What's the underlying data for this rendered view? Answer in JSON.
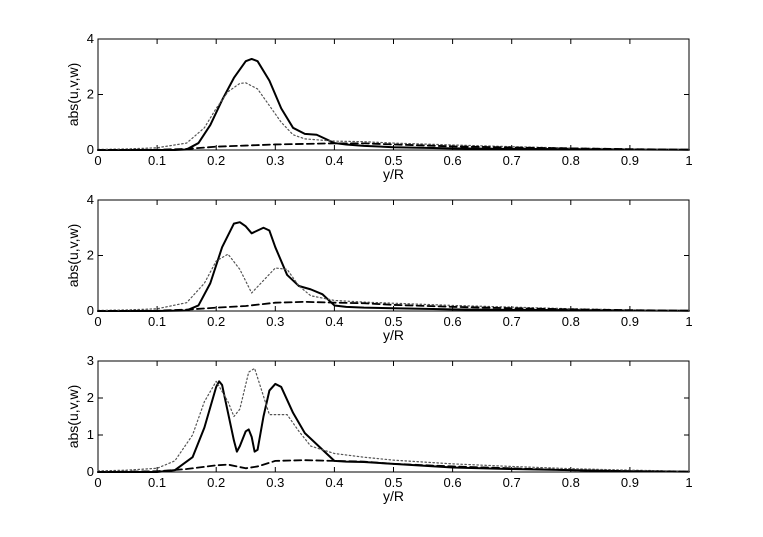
{
  "chart_data": [
    {
      "type": "line",
      "xlabel": "y/R",
      "ylabel": "abs(u,v,w)",
      "xlim": [
        0,
        1
      ],
      "ylim": [
        0,
        4
      ],
      "xticks": [
        0,
        0.1,
        0.2,
        0.3,
        0.4,
        0.5,
        0.6,
        0.7,
        0.8,
        0.9,
        1
      ],
      "xtick_labels": [
        "0",
        "0.1",
        "0.2",
        "0.3",
        "0.4",
        "0.5",
        "0.6",
        "0.7",
        "0.8",
        "0.9",
        "1"
      ],
      "yticks": [
        0,
        2,
        4
      ],
      "ytick_labels": [
        "0",
        "2",
        "4"
      ],
      "grid": false,
      "series": [
        {
          "style": "solid",
          "color": "#000000",
          "points": [
            [
              0,
              0
            ],
            [
              0.05,
              0
            ],
            [
              0.1,
              0
            ],
            [
              0.13,
              0
            ],
            [
              0.15,
              0.02
            ],
            [
              0.17,
              0.25
            ],
            [
              0.19,
              0.9
            ],
            [
              0.21,
              1.8
            ],
            [
              0.23,
              2.6
            ],
            [
              0.25,
              3.2
            ],
            [
              0.26,
              3.28
            ],
            [
              0.27,
              3.2
            ],
            [
              0.29,
              2.5
            ],
            [
              0.31,
              1.5
            ],
            [
              0.33,
              0.8
            ],
            [
              0.35,
              0.58
            ],
            [
              0.37,
              0.55
            ],
            [
              0.38,
              0.45
            ],
            [
              0.4,
              0.25
            ],
            [
              0.42,
              0.2
            ],
            [
              0.45,
              0.15
            ],
            [
              0.5,
              0.1
            ],
            [
              0.6,
              0.06
            ],
            [
              0.7,
              0.04
            ],
            [
              0.8,
              0.03
            ],
            [
              0.9,
              0.02
            ],
            [
              1,
              0.01
            ]
          ]
        },
        {
          "style": "dotted",
          "color": "#555555",
          "points": [
            [
              0,
              0.02
            ],
            [
              0.05,
              0.04
            ],
            [
              0.1,
              0.08
            ],
            [
              0.15,
              0.25
            ],
            [
              0.18,
              0.8
            ],
            [
              0.2,
              1.5
            ],
            [
              0.22,
              2.1
            ],
            [
              0.24,
              2.4
            ],
            [
              0.25,
              2.42
            ],
            [
              0.27,
              2.2
            ],
            [
              0.29,
              1.6
            ],
            [
              0.31,
              1.0
            ],
            [
              0.33,
              0.55
            ],
            [
              0.35,
              0.4
            ],
            [
              0.4,
              0.32
            ],
            [
              0.45,
              0.3
            ],
            [
              0.5,
              0.25
            ],
            [
              0.6,
              0.18
            ],
            [
              0.7,
              0.12
            ],
            [
              0.8,
              0.07
            ],
            [
              0.9,
              0.04
            ],
            [
              1,
              0.02
            ]
          ]
        },
        {
          "style": "dashed",
          "color": "#000000",
          "points": [
            [
              0,
              0
            ],
            [
              0.1,
              0.01
            ],
            [
              0.15,
              0.04
            ],
            [
              0.2,
              0.12
            ],
            [
              0.25,
              0.16
            ],
            [
              0.3,
              0.2
            ],
            [
              0.35,
              0.22
            ],
            [
              0.4,
              0.24
            ],
            [
              0.45,
              0.24
            ],
            [
              0.5,
              0.2
            ],
            [
              0.6,
              0.13
            ],
            [
              0.7,
              0.09
            ],
            [
              0.8,
              0.06
            ],
            [
              0.9,
              0.03
            ],
            [
              1,
              0.01
            ]
          ]
        }
      ]
    },
    {
      "type": "line",
      "xlabel": "y/R",
      "ylabel": "abs(u,v,w)",
      "xlim": [
        0,
        1
      ],
      "ylim": [
        0,
        4
      ],
      "xticks": [
        0,
        0.1,
        0.2,
        0.3,
        0.4,
        0.5,
        0.6,
        0.7,
        0.8,
        0.9,
        1
      ],
      "xtick_labels": [
        "0",
        "0.1",
        "0.2",
        "0.3",
        "0.4",
        "0.5",
        "0.6",
        "0.7",
        "0.8",
        "0.9",
        "1"
      ],
      "yticks": [
        0,
        2,
        4
      ],
      "ytick_labels": [
        "0",
        "2",
        "4"
      ],
      "grid": false,
      "series": [
        {
          "style": "solid",
          "color": "#000000",
          "points": [
            [
              0,
              0
            ],
            [
              0.05,
              0
            ],
            [
              0.1,
              0
            ],
            [
              0.15,
              0.02
            ],
            [
              0.17,
              0.2
            ],
            [
              0.19,
              1.0
            ],
            [
              0.21,
              2.3
            ],
            [
              0.23,
              3.15
            ],
            [
              0.24,
              3.2
            ],
            [
              0.25,
              3.05
            ],
            [
              0.26,
              2.8
            ],
            [
              0.27,
              2.9
            ],
            [
              0.28,
              3.0
            ],
            [
              0.29,
              2.9
            ],
            [
              0.3,
              2.3
            ],
            [
              0.32,
              1.3
            ],
            [
              0.34,
              0.9
            ],
            [
              0.36,
              0.78
            ],
            [
              0.38,
              0.6
            ],
            [
              0.4,
              0.2
            ],
            [
              0.42,
              0.15
            ],
            [
              0.45,
              0.12
            ],
            [
              0.5,
              0.1
            ],
            [
              0.6,
              0.06
            ],
            [
              0.7,
              0.04
            ],
            [
              0.8,
              0.03
            ],
            [
              0.9,
              0.02
            ],
            [
              1,
              0.01
            ]
          ]
        },
        {
          "style": "dotted",
          "color": "#555555",
          "points": [
            [
              0,
              0.02
            ],
            [
              0.05,
              0.04
            ],
            [
              0.1,
              0.08
            ],
            [
              0.15,
              0.3
            ],
            [
              0.18,
              1.0
            ],
            [
              0.2,
              1.8
            ],
            [
              0.22,
              2.05
            ],
            [
              0.24,
              1.5
            ],
            [
              0.26,
              0.65
            ],
            [
              0.28,
              1.1
            ],
            [
              0.3,
              1.55
            ],
            [
              0.32,
              1.5
            ],
            [
              0.34,
              0.9
            ],
            [
              0.36,
              0.55
            ],
            [
              0.4,
              0.38
            ],
            [
              0.45,
              0.32
            ],
            [
              0.5,
              0.28
            ],
            [
              0.6,
              0.2
            ],
            [
              0.7,
              0.14
            ],
            [
              0.8,
              0.08
            ],
            [
              0.9,
              0.04
            ],
            [
              1,
              0.02
            ]
          ]
        },
        {
          "style": "dashed",
          "color": "#000000",
          "points": [
            [
              0,
              0
            ],
            [
              0.1,
              0.01
            ],
            [
              0.15,
              0.05
            ],
            [
              0.2,
              0.12
            ],
            [
              0.25,
              0.18
            ],
            [
              0.3,
              0.3
            ],
            [
              0.35,
              0.33
            ],
            [
              0.4,
              0.3
            ],
            [
              0.45,
              0.28
            ],
            [
              0.5,
              0.22
            ],
            [
              0.6,
              0.15
            ],
            [
              0.7,
              0.1
            ],
            [
              0.8,
              0.06
            ],
            [
              0.9,
              0.03
            ],
            [
              1,
              0.01
            ]
          ]
        }
      ]
    },
    {
      "type": "line",
      "xlabel": "y/R",
      "ylabel": "abs(u,v,w)",
      "xlim": [
        0,
        1
      ],
      "ylim": [
        0,
        3
      ],
      "xticks": [
        0,
        0.1,
        0.2,
        0.3,
        0.4,
        0.5,
        0.6,
        0.7,
        0.8,
        0.9,
        1
      ],
      "xtick_labels": [
        "0",
        "0.1",
        "0.2",
        "0.3",
        "0.4",
        "0.5",
        "0.6",
        "0.7",
        "0.8",
        "0.9",
        "1"
      ],
      "yticks": [
        0,
        1,
        2,
        3
      ],
      "ytick_labels": [
        "0",
        "1",
        "2",
        "3"
      ],
      "grid": false,
      "series": [
        {
          "style": "solid",
          "color": "#000000",
          "points": [
            [
              0,
              0
            ],
            [
              0.05,
              0
            ],
            [
              0.1,
              0
            ],
            [
              0.13,
              0.05
            ],
            [
              0.16,
              0.4
            ],
            [
              0.18,
              1.2
            ],
            [
              0.2,
              2.3
            ],
            [
              0.205,
              2.45
            ],
            [
              0.21,
              2.35
            ],
            [
              0.22,
              1.6
            ],
            [
              0.23,
              0.85
            ],
            [
              0.235,
              0.55
            ],
            [
              0.24,
              0.7
            ],
            [
              0.25,
              1.1
            ],
            [
              0.255,
              1.15
            ],
            [
              0.26,
              0.95
            ],
            [
              0.265,
              0.55
            ],
            [
              0.27,
              0.6
            ],
            [
              0.28,
              1.5
            ],
            [
              0.29,
              2.2
            ],
            [
              0.3,
              2.38
            ],
            [
              0.31,
              2.3
            ],
            [
              0.33,
              1.6
            ],
            [
              0.35,
              1.05
            ],
            [
              0.37,
              0.75
            ],
            [
              0.39,
              0.45
            ],
            [
              0.4,
              0.3
            ],
            [
              0.42,
              0.28
            ],
            [
              0.45,
              0.27
            ],
            [
              0.5,
              0.22
            ],
            [
              0.6,
              0.12
            ],
            [
              0.7,
              0.08
            ],
            [
              0.8,
              0.05
            ],
            [
              0.9,
              0.02
            ],
            [
              1,
              0.01
            ]
          ]
        },
        {
          "style": "dotted",
          "color": "#555555",
          "points": [
            [
              0,
              0.03
            ],
            [
              0.05,
              0.05
            ],
            [
              0.1,
              0.1
            ],
            [
              0.13,
              0.3
            ],
            [
              0.16,
              1.0
            ],
            [
              0.18,
              1.9
            ],
            [
              0.2,
              2.45
            ],
            [
              0.22,
              1.9
            ],
            [
              0.23,
              1.5
            ],
            [
              0.24,
              1.7
            ],
            [
              0.255,
              2.7
            ],
            [
              0.265,
              2.8
            ],
            [
              0.275,
              2.3
            ],
            [
              0.29,
              1.55
            ],
            [
              0.3,
              1.55
            ],
            [
              0.32,
              1.55
            ],
            [
              0.34,
              1.1
            ],
            [
              0.36,
              0.7
            ],
            [
              0.4,
              0.5
            ],
            [
              0.45,
              0.4
            ],
            [
              0.5,
              0.32
            ],
            [
              0.6,
              0.22
            ],
            [
              0.7,
              0.15
            ],
            [
              0.8,
              0.09
            ],
            [
              0.9,
              0.05
            ],
            [
              1,
              0.02
            ]
          ]
        },
        {
          "style": "dashed",
          "color": "#000000",
          "points": [
            [
              0,
              0
            ],
            [
              0.1,
              0.02
            ],
            [
              0.15,
              0.08
            ],
            [
              0.2,
              0.18
            ],
            [
              0.22,
              0.2
            ],
            [
              0.25,
              0.1
            ],
            [
              0.27,
              0.15
            ],
            [
              0.3,
              0.3
            ],
            [
              0.35,
              0.32
            ],
            [
              0.4,
              0.3
            ],
            [
              0.45,
              0.28
            ],
            [
              0.5,
              0.22
            ],
            [
              0.6,
              0.15
            ],
            [
              0.7,
              0.1
            ],
            [
              0.8,
              0.05
            ],
            [
              0.9,
              0.02
            ],
            [
              1,
              0.01
            ]
          ]
        }
      ]
    }
  ]
}
